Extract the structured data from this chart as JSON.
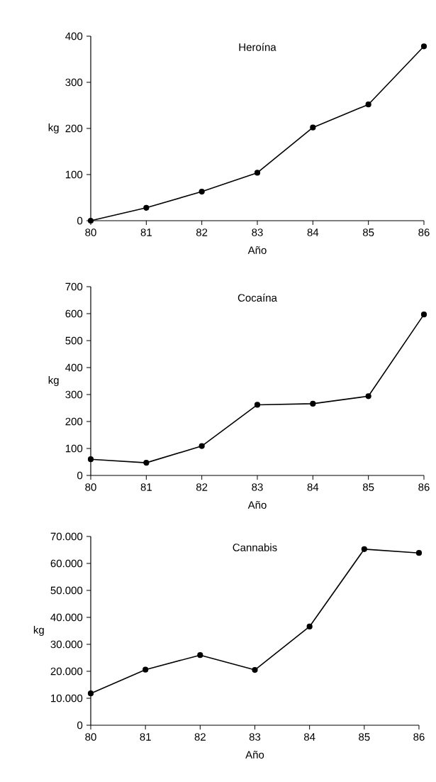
{
  "chart_data": [
    {
      "type": "line",
      "title": "Heroína",
      "xlabel": "Año",
      "ylabel": "kg",
      "marker": "circle",
      "line_style": "solid",
      "x": [
        80,
        81,
        82,
        83,
        84,
        85,
        86
      ],
      "series": [
        {
          "color": "#000000",
          "values": [
            0,
            28,
            63,
            104,
            202,
            252,
            378
          ]
        }
      ],
      "xlim": [
        80,
        86
      ],
      "xticks": [
        80,
        81,
        82,
        83,
        84,
        85,
        86
      ],
      "ylim": [
        0,
        400
      ],
      "yticks": [
        0,
        100,
        200,
        300,
        400
      ]
    },
    {
      "type": "line",
      "title": "Cocaína",
      "xlabel": "Año",
      "ylabel": "kg",
      "marker": "circle",
      "line_style": "solid",
      "x": [
        80,
        81,
        82,
        83,
        84,
        85,
        86
      ],
      "series": [
        {
          "color": "#000000",
          "values": [
            60,
            47,
            109,
            262,
            266,
            294,
            597
          ]
        }
      ],
      "xlim": [
        80,
        86
      ],
      "xticks": [
        80,
        81,
        82,
        83,
        84,
        85,
        86
      ],
      "ylim": [
        0,
        700
      ],
      "yticks": [
        0,
        100,
        200,
        300,
        400,
        500,
        600,
        700
      ]
    },
    {
      "type": "line",
      "title": "Cannabis",
      "xlabel": "Año",
      "ylabel": "kg",
      "marker": "circle",
      "line_style": "solid",
      "x": [
        80,
        81,
        82,
        83,
        84,
        85,
        86
      ],
      "series": [
        {
          "color": "#000000",
          "values": [
            11800,
            20600,
            26000,
            20500,
            36600,
            65300,
            63900
          ]
        }
      ],
      "xlim": [
        80,
        86
      ],
      "xticks": [
        80,
        81,
        82,
        83,
        84,
        85,
        86
      ],
      "ylim": [
        0,
        70000
      ],
      "yticks": [
        0,
        {
          "value": 10000,
          "label": "10.000"
        },
        {
          "value": 20000,
          "label": "20.000"
        },
        {
          "value": 30000,
          "label": "30.000"
        },
        {
          "value": 40000,
          "label": "40.000"
        },
        {
          "value": 50000,
          "label": "50.000"
        },
        {
          "value": 60000,
          "label": "60.000"
        },
        {
          "value": 70000,
          "label": "70.000"
        }
      ]
    }
  ]
}
